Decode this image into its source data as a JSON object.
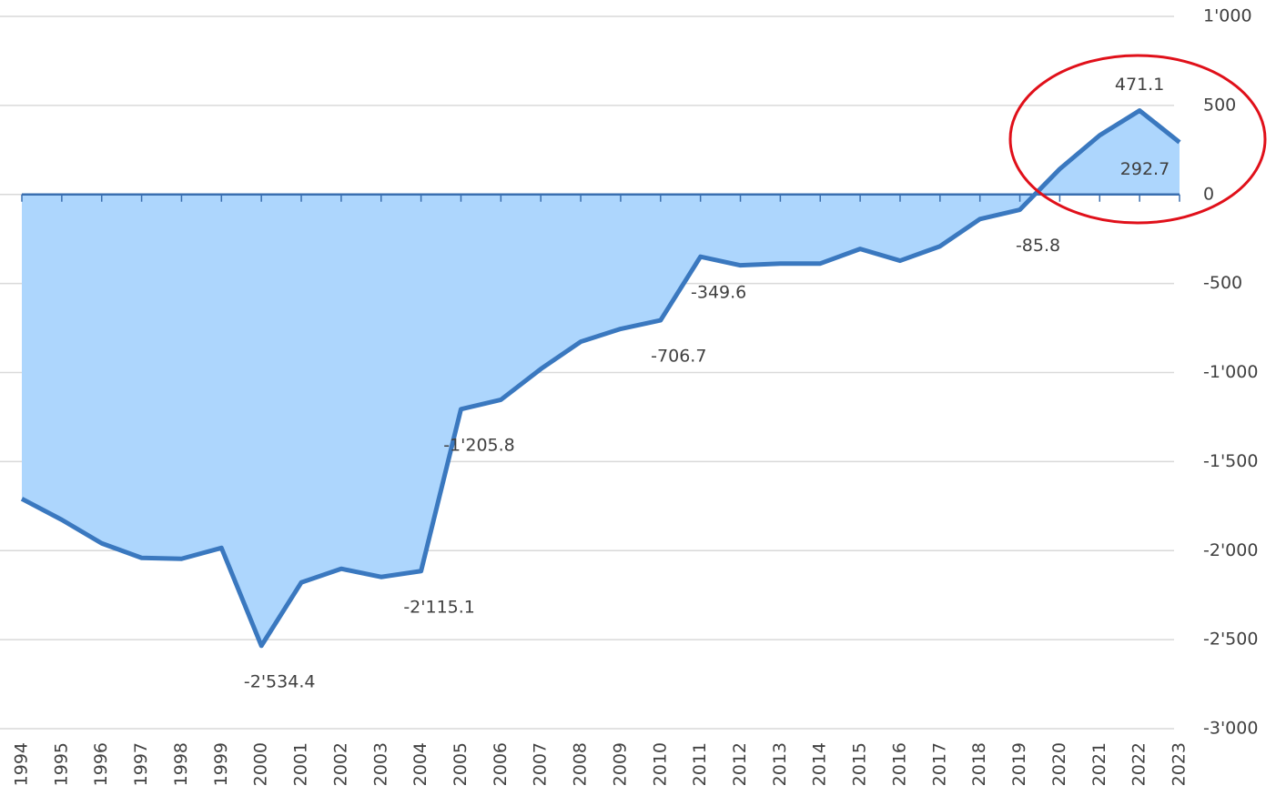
{
  "chart_data": {
    "type": "area",
    "categories": [
      "1994",
      "1995",
      "1996",
      "1997",
      "1998",
      "1999",
      "2000",
      "2001",
      "2002",
      "2003",
      "2004",
      "2005",
      "2006",
      "2007",
      "2008",
      "2009",
      "2010",
      "2011",
      "2012",
      "2013",
      "2014",
      "2015",
      "2016",
      "2017",
      "2018",
      "2019",
      "2020",
      "2021",
      "2022",
      "2023"
    ],
    "values": [
      -1709,
      -1827,
      -1959,
      -2041,
      -2046,
      -1985,
      -2534.4,
      -2179,
      -2102,
      -2148,
      -2115.1,
      -1205.8,
      -1153,
      -980,
      -827,
      -755,
      -706.7,
      -349.6,
      -398,
      -388,
      -388,
      -306,
      -372,
      -291,
      -138,
      -85.8,
      143,
      332,
      471.1,
      292.7
    ],
    "value_labels": [
      null,
      null,
      null,
      null,
      null,
      null,
      "-2'534.4",
      null,
      null,
      null,
      "-2'115.1",
      "-1'205.8",
      null,
      null,
      null,
      null,
      "-706.7",
      "-349.6",
      null,
      null,
      null,
      null,
      null,
      null,
      null,
      "-85.8",
      null,
      null,
      "471.1",
      "292.7"
    ],
    "color": "#3a78bf",
    "fill": "#add6fd",
    "ylim": [
      -3000,
      1000
    ],
    "yticks": [
      {
        "value": 1000,
        "label": "1'000"
      },
      500,
      0,
      -500,
      {
        "value": -1000,
        "label": "-1'000"
      },
      {
        "value": -1500,
        "label": "-1'500"
      },
      {
        "value": -2000,
        "label": "-2'000"
      },
      {
        "value": -2500,
        "label": "-2'500"
      },
      {
        "value": -3000,
        "label": "-3'000"
      }
    ],
    "grid": true
  }
}
